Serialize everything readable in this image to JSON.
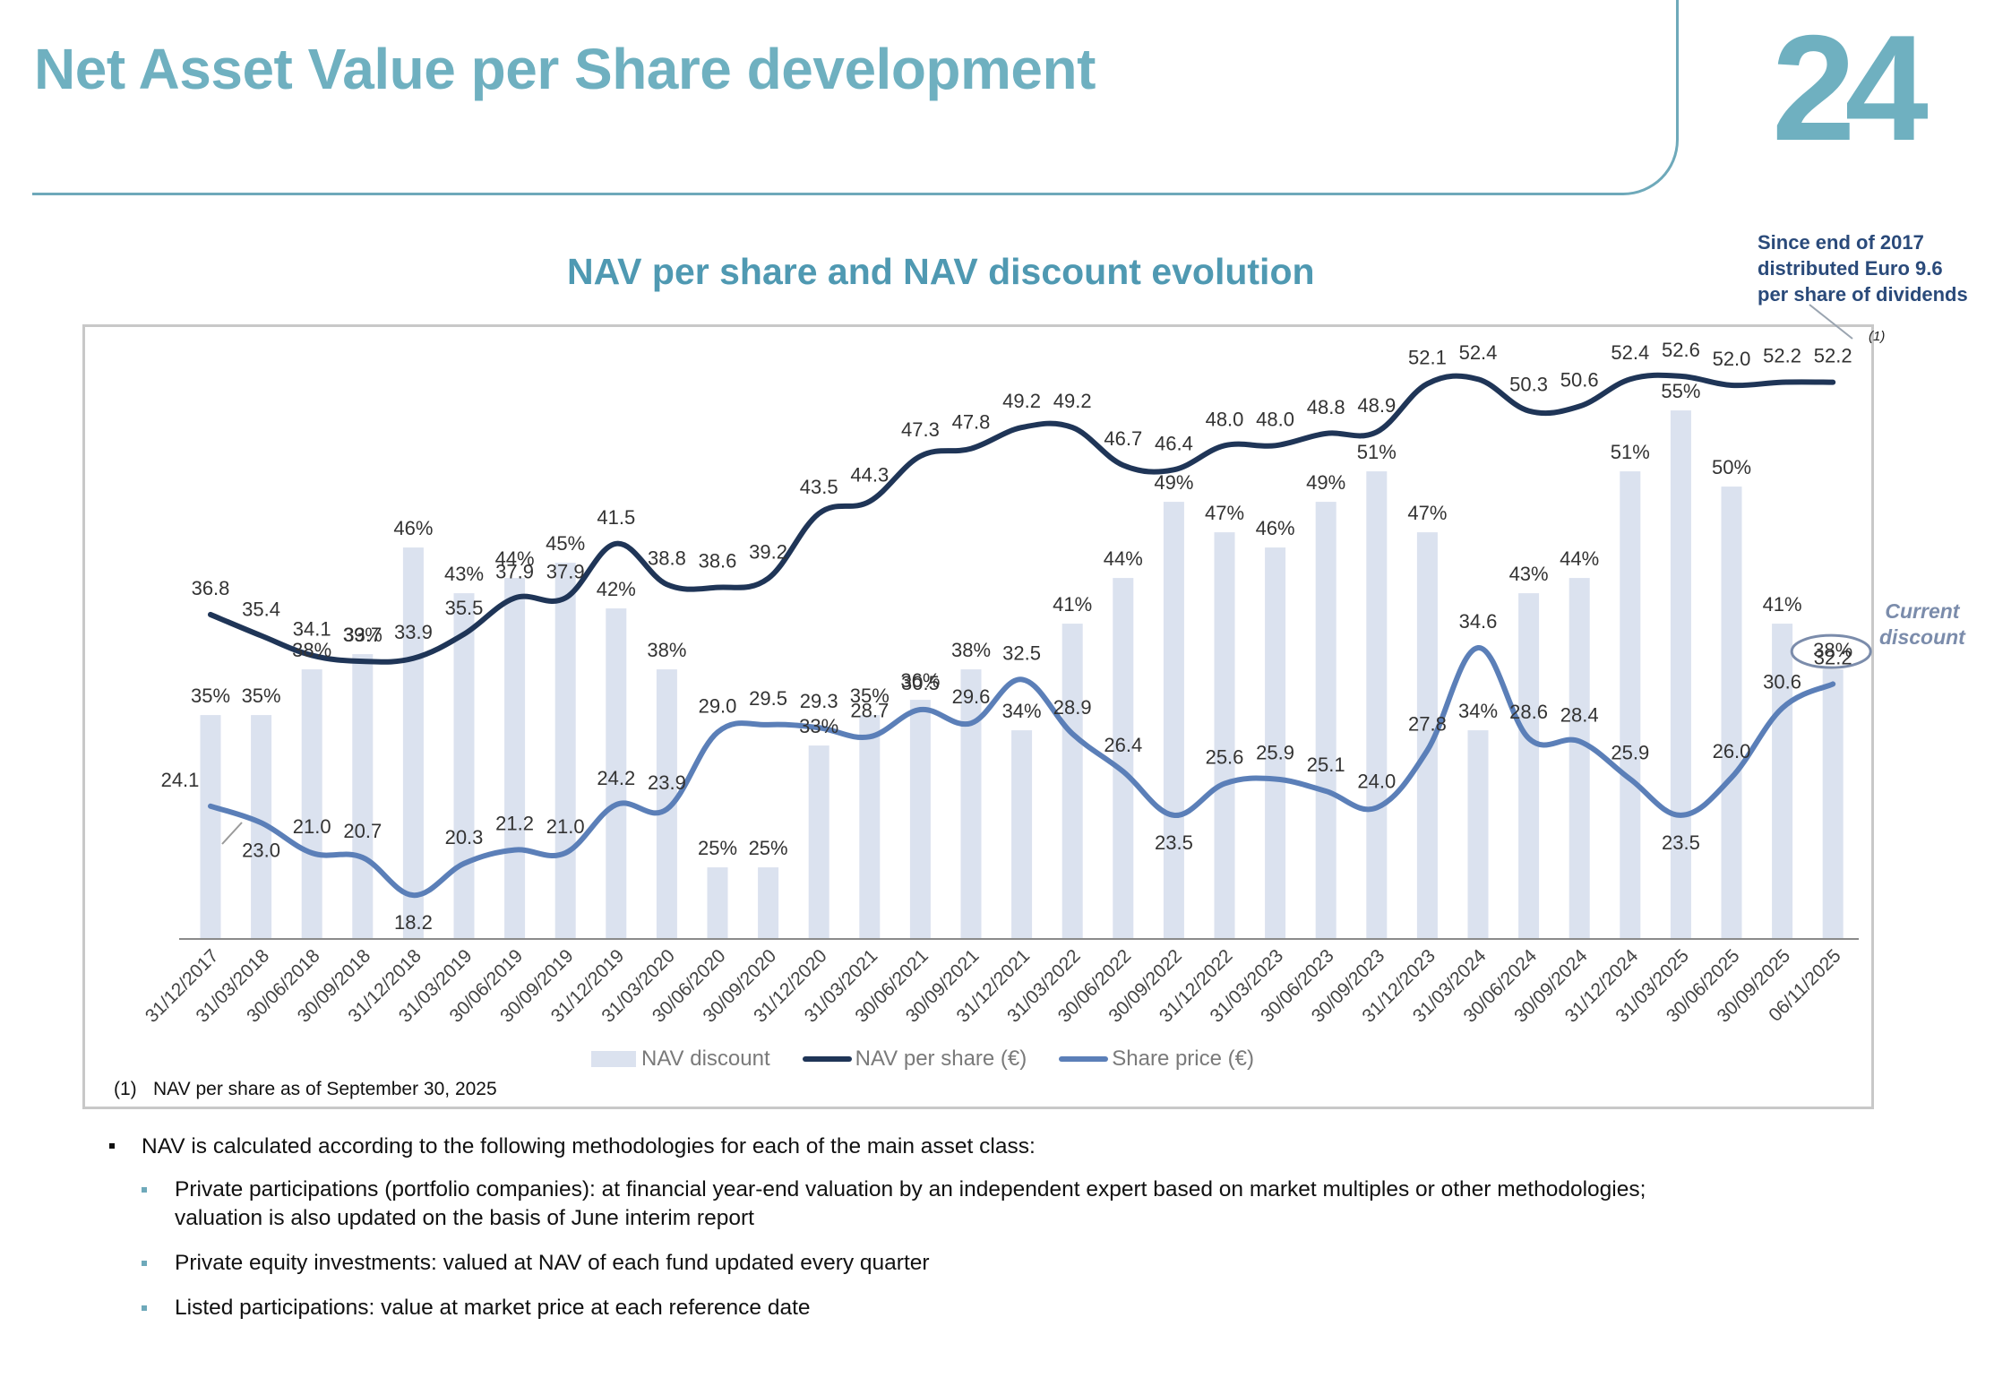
{
  "page": {
    "title": "Net Asset Value per Share development",
    "page_number": "24"
  },
  "chart_title": "NAV per share and NAV discount evolution",
  "dividend_note": {
    "lines": [
      "Since end of 2017",
      "distributed Euro 9.6",
      "per share of dividends"
    ]
  },
  "current_discount": {
    "lines": [
      "Current",
      "discount"
    ]
  },
  "footnote": {
    "marker": "(1)",
    "text": "NAV per share as of September 30, 2025",
    "superscript": "(1)"
  },
  "colors": {
    "brand_teal": "#6fb0c0",
    "nav_discount_bar": "#dbe2ef",
    "nav_per_share_line": "#1f3557",
    "share_price_line": "#5b7fb8",
    "annotation_grey": "#7b8cab"
  },
  "bullets": {
    "main": "NAV is calculated according to the following methodologies for each of the main asset class:",
    "sub": [
      {
        "lines": [
          "Private participations (portfolio companies): at financial year-end valuation by an independent expert based on market multiples or other methodologies;",
          "valuation is also updated on the basis of June interim  report"
        ]
      },
      {
        "lines": [
          "Private equity investments: valued at NAV of each fund updated every  quarter"
        ]
      },
      {
        "lines": [
          "Listed participations: value at market price at each reference  date"
        ]
      }
    ]
  },
  "chart_data": {
    "type": "bar+line",
    "title": "NAV per share and NAV discount evolution",
    "xlabel": "",
    "ylabel": "",
    "grid": false,
    "legend_position": "bottom",
    "categories": [
      "31/12/2017",
      "31/03/2018",
      "30/06/2018",
      "30/09/2018",
      "31/12/2018",
      "31/03/2019",
      "30/06/2019",
      "30/09/2019",
      "31/12/2019",
      "31/03/2020",
      "30/06/2020",
      "30/09/2020",
      "31/12/2020",
      "31/03/2021",
      "30/06/2021",
      "30/09/2021",
      "31/12/2021",
      "31/03/2022",
      "30/06/2022",
      "30/09/2022",
      "31/12/2022",
      "31/03/2023",
      "30/06/2023",
      "30/09/2023",
      "31/12/2023",
      "31/03/2024",
      "30/06/2024",
      "30/09/2024",
      "31/12/2024",
      "31/03/2025",
      "30/06/2025",
      "30/09/2025",
      "06/11/2025"
    ],
    "series": [
      {
        "name": "NAV discount",
        "type": "bar",
        "unit": "%",
        "axis": "secondary",
        "values": [
          35,
          35,
          38,
          39,
          46,
          43,
          44,
          45,
          42,
          38,
          25,
          25,
          33,
          35,
          36,
          38,
          34,
          41,
          44,
          49,
          47,
          46,
          49,
          51,
          47,
          34,
          43,
          44,
          51,
          55,
          50,
          41,
          38
        ]
      },
      {
        "name": "NAV per share (€)",
        "type": "line",
        "axis": "primary",
        "values": [
          36.8,
          35.4,
          34.1,
          33.7,
          33.9,
          35.5,
          37.9,
          37.9,
          41.5,
          38.8,
          38.6,
          39.2,
          43.5,
          44.3,
          47.3,
          47.8,
          49.2,
          49.2,
          46.7,
          46.4,
          48.0,
          48.0,
          48.8,
          48.9,
          52.1,
          52.4,
          50.3,
          50.6,
          52.4,
          52.6,
          52.0,
          52.2,
          52.2
        ]
      },
      {
        "name": "Share price (€)",
        "type": "line",
        "axis": "primary",
        "values": [
          24.1,
          23.0,
          21.0,
          20.7,
          18.2,
          20.3,
          21.2,
          21.0,
          24.2,
          23.9,
          29.0,
          29.5,
          29.3,
          28.7,
          30.5,
          29.6,
          32.5,
          28.9,
          26.4,
          23.5,
          25.6,
          25.9,
          25.1,
          24.0,
          27.8,
          34.6,
          28.6,
          28.4,
          25.9,
          23.5,
          26.0,
          30.6,
          32.2
        ]
      }
    ],
    "primary_ylim": [
      15.3,
      57
    ],
    "secondary_ylim": [
      20.3,
      58
    ],
    "annotations": [
      {
        "text": "(1)",
        "target": "NAV per share (€)",
        "index": 32
      },
      {
        "text": "Current discount",
        "target": "NAV discount",
        "index": 32,
        "style": "circled"
      }
    ]
  }
}
